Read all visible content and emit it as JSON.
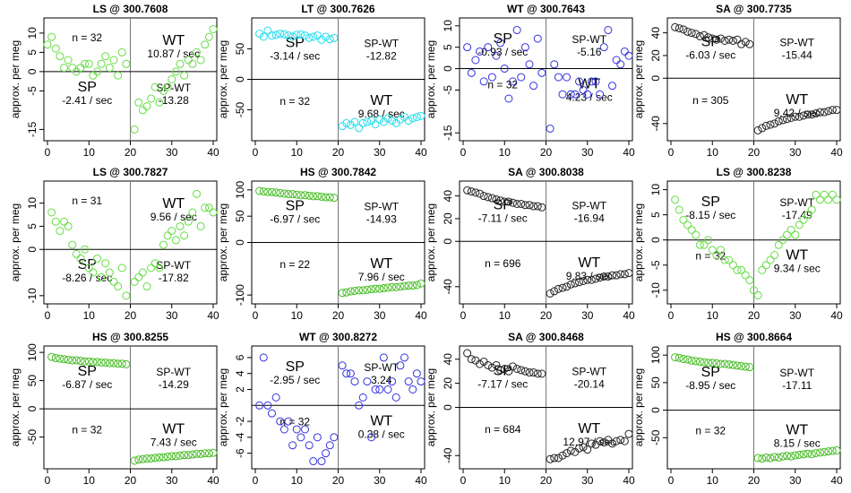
{
  "chart_data": [
    {
      "type": "scatter",
      "title": "LS @ 300.7608",
      "ylabel": "approx. per meg",
      "xlim": [
        0,
        40
      ],
      "ylim": [
        -17,
        13
      ],
      "xticks": [
        0,
        10,
        20,
        30,
        40
      ],
      "yticks": [
        -15,
        -5,
        0,
        5,
        10
      ],
      "color": "#66dd44",
      "annotations": {
        "n": "n = 32",
        "sp": "SP",
        "sp_rate": "-2.41 / sec",
        "spwt": "SP-WT",
        "spwt_rate": "-13.28",
        "wt": "WT",
        "wt_rate": "10.87 / sec"
      },
      "x": [
        0,
        1,
        2,
        3,
        4,
        5,
        6,
        7,
        8,
        9,
        10,
        11,
        12,
        13,
        14,
        15,
        16,
        17,
        18,
        19,
        21,
        22,
        23,
        24,
        25,
        26,
        27,
        28,
        29,
        30,
        31,
        32,
        33,
        34,
        35,
        36,
        37,
        38,
        39,
        40
      ],
      "y": [
        7,
        9,
        6,
        4,
        1,
        3,
        1,
        0,
        1,
        2,
        2,
        -1,
        0,
        2,
        4,
        1,
        3,
        -1,
        5,
        2,
        -15,
        -8,
        -10,
        -9,
        -7,
        -4,
        -8,
        -5,
        -4,
        -2,
        0,
        2,
        -1,
        3,
        2,
        5,
        3,
        7,
        9,
        11
      ]
    },
    {
      "type": "scatter",
      "title": "LT @ 300.7626",
      "ylabel": "approx. per meg",
      "xlim": [
        0,
        40
      ],
      "ylim": [
        -95,
        95
      ],
      "xticks": [
        0,
        10,
        20,
        30,
        40
      ],
      "yticks": [
        -50,
        0,
        50
      ],
      "color": "#22ddee",
      "annotations": {
        "n": "n = 32",
        "sp": "SP",
        "sp_rate": "-3.14 / sec",
        "spwt": "SP-WT",
        "spwt_rate": "-12.82",
        "wt": "WT",
        "wt_rate": "9.68 / sec"
      },
      "x": [
        1,
        2,
        3,
        4,
        5,
        6,
        7,
        8,
        9,
        10,
        11,
        12,
        13,
        14,
        15,
        16,
        17,
        18,
        19,
        21,
        22,
        23,
        24,
        25,
        26,
        27,
        28,
        29,
        30,
        31,
        32,
        33,
        34,
        35,
        36,
        37,
        38,
        39,
        40
      ],
      "y": [
        75,
        70,
        80,
        72,
        73,
        75,
        74,
        72,
        70,
        73,
        74,
        72,
        68,
        70,
        72,
        65,
        70,
        66,
        68,
        -77,
        -72,
        -75,
        -70,
        -80,
        -72,
        -70,
        -68,
        -74,
        -66,
        -70,
        -64,
        -68,
        -72,
        -66,
        -62,
        -68,
        -64,
        -62,
        -60
      ]
    },
    {
      "type": "scatter",
      "title": "WT @ 300.7643",
      "ylabel": "approx. per meg",
      "xlim": [
        0,
        40
      ],
      "ylim": [
        -16,
        11
      ],
      "xticks": [
        0,
        10,
        20,
        30,
        40
      ],
      "yticks": [
        -15,
        -5,
        0,
        5,
        10
      ],
      "color": "#3333dd",
      "annotations": {
        "n": "n = 32",
        "sp": "SP",
        "sp_rate": "-0.93 / sec",
        "spwt": "SP-WT",
        "spwt_rate": "-5.16",
        "wt": "WT",
        "wt_rate": "4.23 / sec"
      },
      "x": [
        1,
        2,
        3,
        4,
        5,
        6,
        7,
        8,
        9,
        10,
        11,
        12,
        13,
        14,
        15,
        16,
        17,
        18,
        19,
        21,
        22,
        23,
        24,
        25,
        26,
        27,
        28,
        29,
        30,
        31,
        32,
        33,
        34,
        35,
        36,
        37,
        38,
        39,
        40
      ],
      "y": [
        5,
        -1,
        2,
        4,
        -3,
        5,
        -2,
        3,
        6,
        0,
        -7,
        -3,
        9,
        -2,
        5,
        1,
        -4,
        7,
        -1,
        -14,
        1,
        -2,
        -6,
        -2,
        -6,
        -6,
        -3,
        -5,
        -6,
        -3,
        -3,
        -6,
        5,
        9,
        -4,
        2,
        1,
        4,
        3
      ]
    },
    {
      "type": "scatter",
      "title": "SA @ 300.7735",
      "ylabel": "approx. per meg",
      "xlim": [
        0,
        40
      ],
      "ylim": [
        -52,
        50
      ],
      "xticks": [
        0,
        10,
        20,
        30,
        40
      ],
      "yticks": [
        -40,
        0,
        20,
        40
      ],
      "color": "#222222",
      "annotations": {
        "n": "n = 305",
        "sp": "SP",
        "sp_rate": "-6.03 / sec",
        "spwt": "SP-WT",
        "spwt_rate": "-15.44",
        "wt": "WT",
        "wt_rate": "9.42 / sec"
      },
      "x": [
        1,
        2,
        3,
        4,
        5,
        6,
        7,
        8,
        9,
        10,
        11,
        12,
        13,
        14,
        15,
        16,
        17,
        18,
        19,
        21,
        22,
        23,
        24,
        25,
        26,
        27,
        28,
        29,
        30,
        31,
        32,
        33,
        34,
        35,
        36,
        37,
        38,
        39,
        40
      ],
      "y": [
        45,
        44,
        43,
        41,
        40,
        39,
        37,
        38,
        36,
        35,
        34,
        35,
        33,
        34,
        33,
        34,
        30,
        32,
        30,
        -46,
        -44,
        -42,
        -41,
        -40,
        -38,
        -37,
        -36,
        -35,
        -34,
        -34,
        -33,
        -32,
        -32,
        -31,
        -30,
        -30,
        -29,
        -28,
        -28
      ]
    },
    {
      "type": "scatter",
      "title": "LS @ 300.7827",
      "ylabel": "approx. per meg",
      "xlim": [
        0,
        40
      ],
      "ylim": [
        -11,
        14
      ],
      "xticks": [
        0,
        10,
        20,
        30,
        40
      ],
      "yticks": [
        -10,
        0,
        5,
        10
      ],
      "color": "#66dd44",
      "annotations": {
        "n": "n = 31",
        "sp": "SP",
        "sp_rate": "-8.26 / sec",
        "spwt": "SP-WT",
        "spwt_rate": "-17.82",
        "wt": "WT",
        "wt_rate": "9.56 / sec"
      },
      "x": [
        1,
        2,
        3,
        4,
        5,
        6,
        7,
        8,
        9,
        10,
        11,
        12,
        13,
        14,
        15,
        16,
        17,
        18,
        19,
        21,
        22,
        23,
        24,
        25,
        26,
        27,
        28,
        29,
        30,
        31,
        32,
        33,
        34,
        35,
        36,
        37,
        38,
        39,
        40
      ],
      "y": [
        8,
        6,
        4,
        6,
        5,
        1,
        -1,
        -2,
        0,
        -4,
        -5,
        -2,
        -6,
        -3,
        -5,
        -7,
        -8,
        -4,
        -10,
        -7,
        -6,
        -5,
        -8,
        -4,
        -3,
        -4,
        1,
        3,
        4,
        2,
        5,
        3,
        6,
        8,
        12,
        5,
        9,
        9,
        8
      ]
    },
    {
      "type": "scatter",
      "title": "HS @ 300.7842",
      "ylabel": "approx. per meg",
      "xlim": [
        0,
        40
      ],
      "ylim": [
        -110,
        110
      ],
      "xticks": [
        0,
        10,
        20,
        30,
        40
      ],
      "yticks": [
        -100,
        0,
        50,
        100
      ],
      "color": "#44bb22",
      "annotations": {
        "n": "n = 22",
        "sp": "SP",
        "sp_rate": "-6.97 / sec",
        "spwt": "SP-WT",
        "spwt_rate": "-14.93",
        "wt": "WT",
        "wt_rate": "7.96 / sec"
      },
      "x": [
        1,
        2,
        3,
        4,
        5,
        6,
        7,
        8,
        9,
        10,
        11,
        12,
        13,
        14,
        15,
        16,
        17,
        18,
        19,
        21,
        22,
        23,
        24,
        25,
        26,
        27,
        28,
        29,
        30,
        31,
        32,
        33,
        34,
        35,
        36,
        37,
        38,
        39,
        40
      ],
      "y": [
        98,
        97,
        96,
        96,
        95,
        94,
        93,
        92,
        92,
        91,
        90,
        90,
        89,
        88,
        88,
        87,
        86,
        86,
        85,
        -96,
        -95,
        -93,
        -92,
        -91,
        -91,
        -90,
        -89,
        -88,
        -88,
        -87,
        -86,
        -85,
        -85,
        -84,
        -83,
        -82,
        -82,
        -81,
        -78
      ]
    },
    {
      "type": "scatter",
      "title": "SA @ 300.8038",
      "ylabel": "approx. per meg",
      "xlim": [
        0,
        40
      ],
      "ylim": [
        -52,
        50
      ],
      "xticks": [
        0,
        10,
        20,
        30,
        40
      ],
      "yticks": [
        -40,
        0,
        20,
        40
      ],
      "color": "#222222",
      "annotations": {
        "n": "n = 696",
        "sp": "SP",
        "sp_rate": "-7.11 / sec",
        "spwt": "SP-WT",
        "spwt_rate": "-16.94",
        "wt": "WT",
        "wt_rate": "9.83 / sec"
      },
      "x": [
        1,
        2,
        3,
        4,
        5,
        6,
        7,
        8,
        9,
        10,
        11,
        12,
        13,
        14,
        15,
        16,
        17,
        18,
        19,
        21,
        22,
        23,
        24,
        25,
        26,
        27,
        28,
        29,
        30,
        31,
        32,
        33,
        34,
        35,
        36,
        37,
        38,
        39,
        40
      ],
      "y": [
        45,
        44,
        43,
        42,
        40,
        39,
        38,
        37,
        36,
        35,
        35,
        34,
        33,
        33,
        32,
        32,
        31,
        31,
        30,
        -46,
        -44,
        -42,
        -41,
        -40,
        -38,
        -37,
        -36,
        -35,
        -34,
        -34,
        -33,
        -32,
        -31,
        -31,
        -30,
        -30,
        -29,
        -29,
        -28
      ]
    },
    {
      "type": "scatter",
      "title": "LS @ 300.8238",
      "ylabel": "approx. per meg",
      "xlim": [
        0,
        40
      ],
      "ylim": [
        -12,
        11
      ],
      "xticks": [
        0,
        10,
        20,
        30,
        40
      ],
      "yticks": [
        -10,
        -5,
        0,
        5,
        10
      ],
      "color": "#66dd44",
      "annotations": {
        "n": "n = 32",
        "sp": "SP",
        "sp_rate": "-8.15 / sec",
        "spwt": "SP-WT",
        "spwt_rate": "-17.49",
        "wt": "WT",
        "wt_rate": "9.34 / sec"
      },
      "x": [
        1,
        2,
        3,
        4,
        5,
        6,
        7,
        8,
        9,
        10,
        11,
        12,
        13,
        14,
        15,
        16,
        17,
        18,
        19,
        20,
        21,
        22,
        23,
        24,
        25,
        26,
        27,
        28,
        29,
        30,
        31,
        32,
        33,
        34,
        35,
        36,
        37,
        38,
        39,
        40
      ],
      "y": [
        8,
        6,
        4,
        3,
        2,
        1,
        -1,
        -1,
        0,
        -2,
        -3,
        -2,
        -4,
        -4,
        -5,
        -6,
        -6,
        -7,
        -8,
        -10,
        -11,
        -6,
        -5,
        -4,
        -3,
        -1,
        0,
        1,
        2,
        1,
        3,
        4,
        5,
        6,
        9,
        8,
        9,
        8,
        9,
        8
      ]
    },
    {
      "type": "scatter",
      "title": "HS @ 300.8255",
      "ylabel": "approx. per meg",
      "xlim": [
        0,
        40
      ],
      "ylim": [
        -100,
        105
      ],
      "xticks": [
        0,
        10,
        20,
        30,
        40
      ],
      "yticks": [
        -50,
        0,
        50,
        100
      ],
      "color": "#44bb22",
      "annotations": {
        "n": "n = 32",
        "sp": "SP",
        "sp_rate": "-6.87 / sec",
        "spwt": "SP-WT",
        "spwt_rate": "-14.29",
        "wt": "WT",
        "wt_rate": "7.43 / sec"
      },
      "x": [
        1,
        2,
        3,
        4,
        5,
        6,
        7,
        8,
        9,
        10,
        11,
        12,
        13,
        14,
        15,
        16,
        17,
        18,
        19,
        21,
        22,
        23,
        24,
        25,
        26,
        27,
        28,
        29,
        30,
        31,
        32,
        33,
        34,
        35,
        36,
        37,
        38,
        39,
        40
      ],
      "y": [
        92,
        90,
        89,
        88,
        87,
        86,
        86,
        85,
        84,
        84,
        83,
        83,
        82,
        82,
        81,
        81,
        80,
        80,
        79,
        -92,
        -90,
        -89,
        -88,
        -88,
        -87,
        -86,
        -86,
        -85,
        -84,
        -84,
        -83,
        -82,
        -82,
        -81,
        -80,
        -80,
        -79,
        -79,
        -78
      ]
    },
    {
      "type": "scatter",
      "title": "WT @ 300.8272",
      "ylabel": "approx. per meg",
      "xlim": [
        0,
        40
      ],
      "ylim": [
        -7.5,
        7
      ],
      "xticks": [
        0,
        10,
        20,
        30,
        40
      ],
      "yticks": [
        -6,
        -4,
        -2,
        2,
        4,
        6
      ],
      "color": "#3333dd",
      "annotations": {
        "n": "n = 32",
        "sp": "SP",
        "sp_rate": "-2.95 / sec",
        "spwt": "SP-WT",
        "spwt_rate": "3.24",
        "wt": "WT",
        "wt_rate": "0.38 / sec"
      },
      "x": [
        1,
        2,
        3,
        4,
        5,
        6,
        7,
        8,
        9,
        10,
        11,
        12,
        13,
        14,
        15,
        16,
        17,
        18,
        19,
        21,
        22,
        23,
        24,
        25,
        26,
        27,
        28,
        29,
        30,
        31,
        32,
        33,
        34,
        35,
        36,
        37,
        38,
        39,
        40
      ],
      "y": [
        0,
        6,
        0,
        -1,
        1,
        -2,
        -3,
        -2,
        -5,
        -3,
        -4,
        -3,
        -5,
        -7,
        -4,
        -7,
        -6,
        -5,
        -4,
        5,
        4,
        4,
        3,
        0,
        1,
        3,
        -4,
        2,
        2,
        6,
        2,
        3,
        1,
        5,
        6,
        3,
        2,
        4,
        3
      ]
    },
    {
      "type": "scatter",
      "title": "SA @ 300.8468",
      "ylabel": "approx. per meg",
      "xlim": [
        0,
        40
      ],
      "ylim": [
        -48,
        48
      ],
      "xticks": [
        0,
        10,
        20,
        30,
        40
      ],
      "yticks": [
        -40,
        0,
        20,
        40
      ],
      "color": "#222222",
      "annotations": {
        "n": "n = 684",
        "sp": "SP",
        "sp_rate": "-7.17 / sec",
        "spwt": "SP-WT",
        "spwt_rate": "-20.14",
        "wt": "WT",
        "wt_rate": "12.97 / sec"
      },
      "x": [
        1,
        2,
        3,
        4,
        5,
        6,
        7,
        8,
        9,
        10,
        11,
        12,
        13,
        14,
        15,
        16,
        17,
        18,
        19,
        21,
        22,
        23,
        24,
        25,
        26,
        27,
        28,
        29,
        30,
        31,
        32,
        33,
        34,
        35,
        36,
        37,
        38,
        39,
        40
      ],
      "y": [
        45,
        40,
        39,
        36,
        38,
        35,
        33,
        35,
        31,
        32,
        30,
        34,
        32,
        31,
        30,
        29,
        29,
        28,
        28,
        -43,
        -42,
        -42,
        -40,
        -38,
        -36,
        -37,
        -34,
        -33,
        -35,
        -30,
        -31,
        -28,
        -29,
        -27,
        -30,
        -28,
        -27,
        -28,
        -22
      ]
    },
    {
      "type": "scatter",
      "title": "HS @ 300.8664",
      "ylabel": "approx. per meg",
      "xlim": [
        0,
        40
      ],
      "ylim": [
        -100,
        110
      ],
      "xticks": [
        0,
        10,
        20,
        30,
        40
      ],
      "yticks": [
        -50,
        0,
        50,
        100
      ],
      "color": "#44bb22",
      "annotations": {
        "n": "n = 32",
        "sp": "SP",
        "sp_rate": "-8.95 / sec",
        "spwt": "SP-WT",
        "spwt_rate": "-17.11",
        "wt": "WT",
        "wt_rate": "8.15 / sec"
      },
      "x": [
        1,
        2,
        3,
        4,
        5,
        6,
        7,
        8,
        9,
        10,
        11,
        12,
        13,
        14,
        15,
        16,
        17,
        18,
        19,
        21,
        22,
        23,
        24,
        25,
        26,
        27,
        28,
        29,
        30,
        31,
        32,
        33,
        34,
        35,
        36,
        37,
        38,
        39,
        40
      ],
      "y": [
        96,
        95,
        93,
        92,
        90,
        89,
        88,
        87,
        86,
        86,
        85,
        84,
        84,
        83,
        82,
        81,
        80,
        79,
        78,
        -87,
        -88,
        -86,
        -87,
        -85,
        -86,
        -84,
        -83,
        -84,
        -82,
        -81,
        -80,
        -79,
        -80,
        -78,
        -77,
        -76,
        -75,
        -74,
        -73
      ]
    }
  ]
}
